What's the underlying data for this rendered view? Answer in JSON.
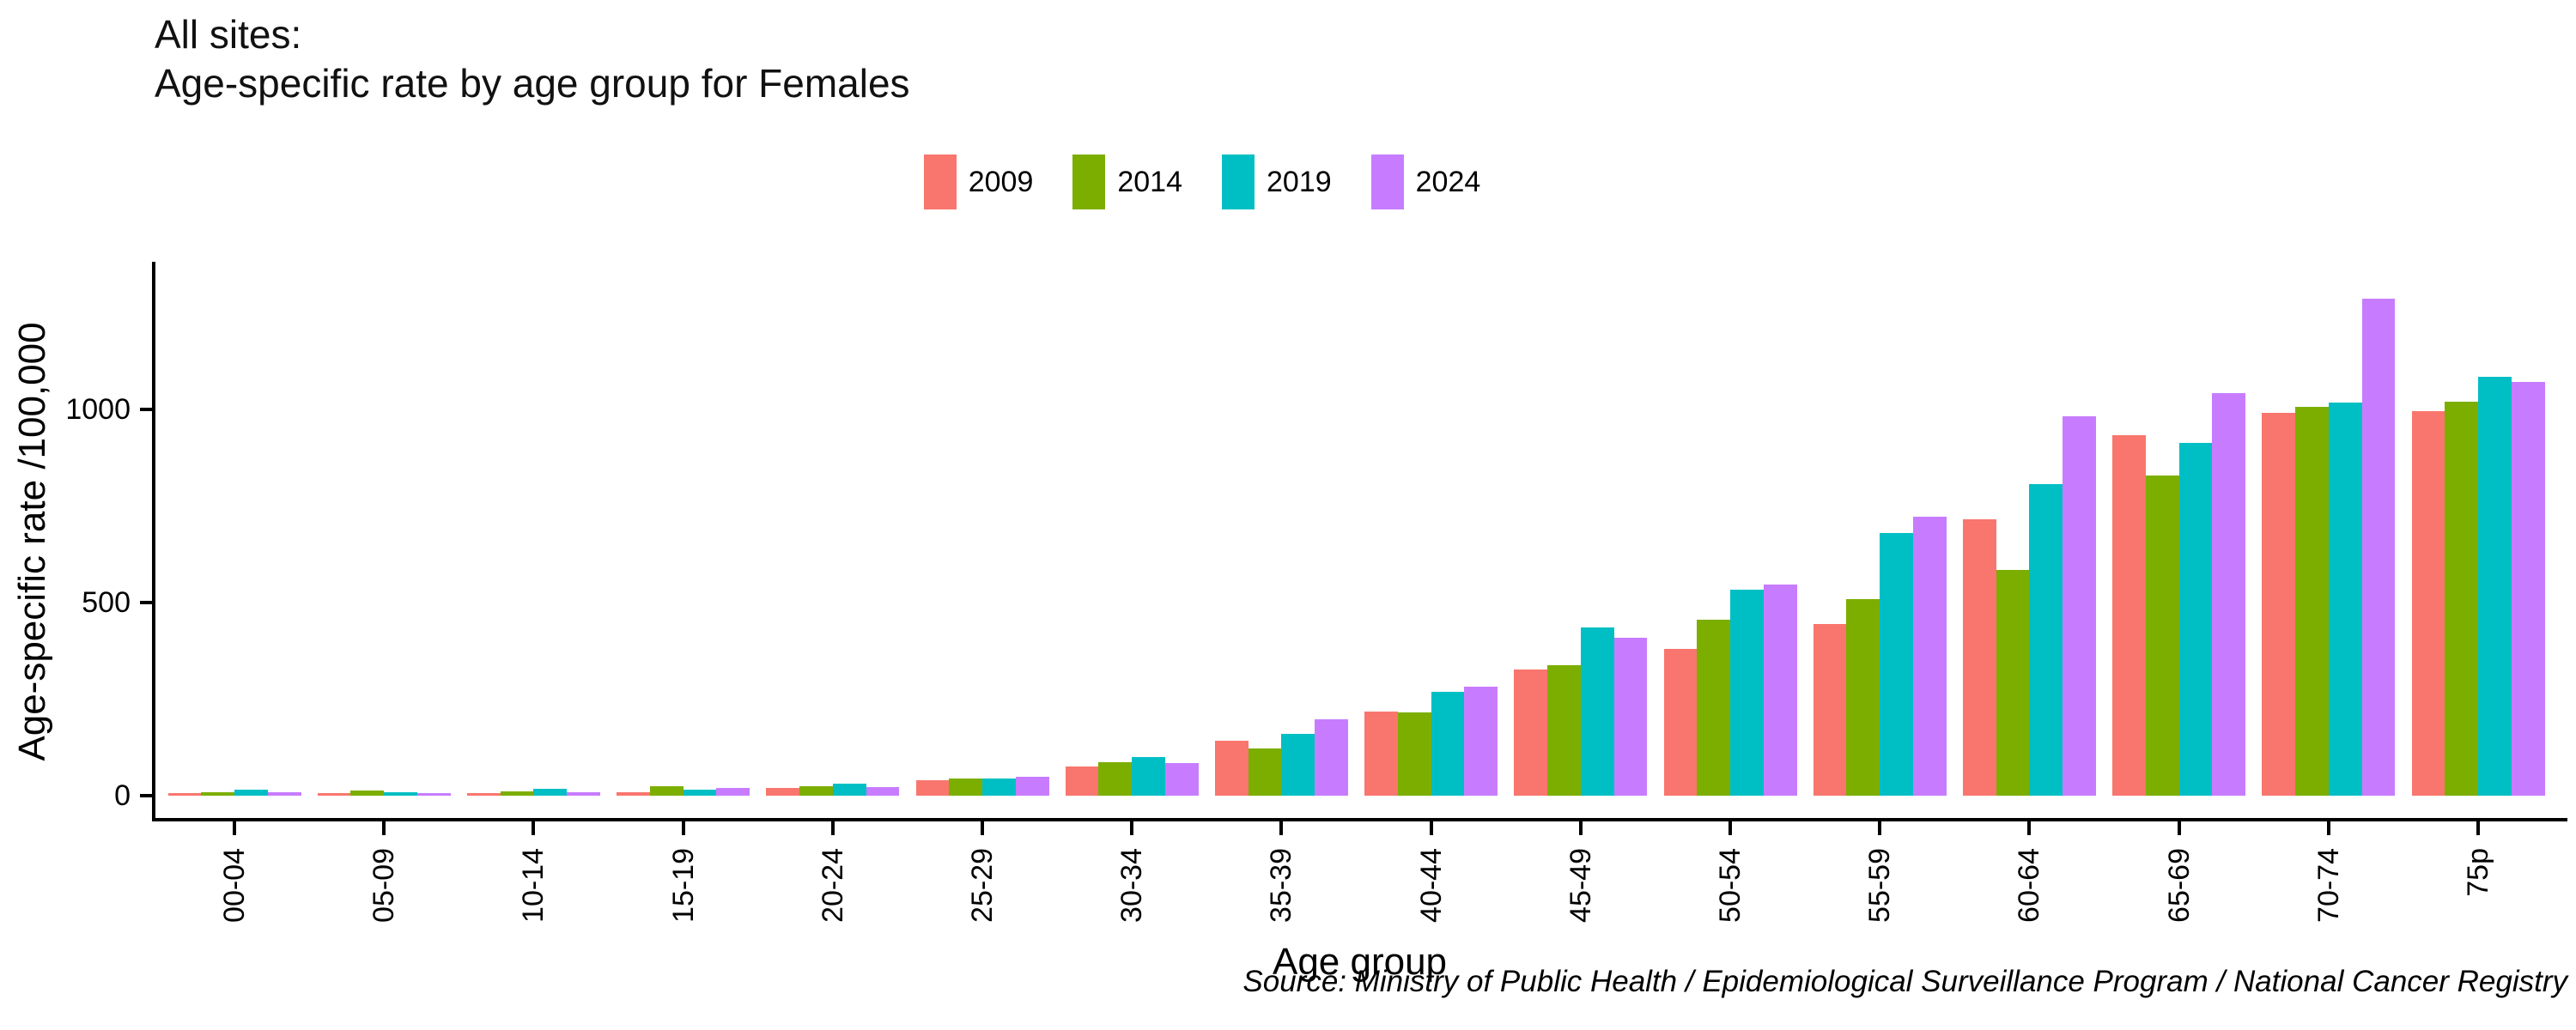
{
  "header": {
    "line1": "All sites:",
    "line2": "Age-specific rate by age group for Females"
  },
  "source": "Source: Ministry of Public Health / Epidemiological Surveillance Program / National Cancer Registry",
  "chart_data": {
    "type": "bar",
    "title": "All sites: Age-specific rate by age group for Females",
    "xlabel": "Age group",
    "ylabel": "Age-specific rate /100,000",
    "categories": [
      "00-04",
      "05-09",
      "10-14",
      "15-19",
      "20-24",
      "25-29",
      "30-34",
      "35-39",
      "40-44",
      "45-49",
      "50-54",
      "55-59",
      "60-64",
      "65-69",
      "70-74",
      "75p"
    ],
    "series": [
      {
        "name": "2009",
        "color": "#F8766D",
        "values": [
          7,
          7,
          7,
          9,
          19,
          39,
          75,
          142,
          217,
          327,
          379,
          444,
          716,
          934,
          991,
          995
        ]
      },
      {
        "name": "2014",
        "color": "#7CAE00",
        "values": [
          10,
          13,
          12,
          24,
          24,
          44,
          86,
          123,
          215,
          338,
          456,
          510,
          584,
          830,
          1006,
          1019
        ]
      },
      {
        "name": "2019",
        "color": "#00BFC4",
        "values": [
          16,
          10,
          17,
          16,
          31,
          44,
          100,
          160,
          269,
          436,
          534,
          679,
          806,
          913,
          1017,
          1084
        ]
      },
      {
        "name": "2024",
        "color": "#C77CFF",
        "values": [
          9,
          6,
          8,
          19,
          23,
          49,
          85,
          198,
          282,
          408,
          547,
          723,
          982,
          1042,
          1286,
          1071
        ]
      }
    ],
    "ylim": [
      0,
      1380
    ],
    "yticks": [
      0,
      500,
      1000
    ],
    "grid": false,
    "legend_position": "top-center",
    "bar_baseline_gap": true
  }
}
